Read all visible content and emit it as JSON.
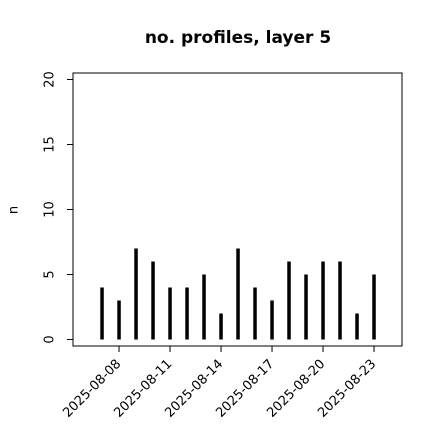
{
  "chart_data": {
    "type": "bar",
    "title": "no. profiles, layer 5",
    "ylabel": "n",
    "x": [
      "2025-08-07",
      "2025-08-08",
      "2025-08-09",
      "2025-08-10",
      "2025-08-11",
      "2025-08-12",
      "2025-08-13",
      "2025-08-14",
      "2025-08-15",
      "2025-08-16",
      "2025-08-17",
      "2025-08-18",
      "2025-08-19",
      "2025-08-20",
      "2025-08-21",
      "2025-08-22",
      "2025-08-23"
    ],
    "values": [
      4,
      3,
      7,
      6,
      4,
      4,
      5,
      2,
      7,
      4,
      3,
      6,
      5,
      6,
      6,
      2,
      5
    ],
    "color": "#000000",
    "xlim": [
      "2025-08-05T07:00",
      "2025-08-24T15:30"
    ],
    "xticks": [
      "2025-08-08",
      "2025-08-11",
      "2025-08-14",
      "2025-08-17",
      "2025-08-20",
      "2025-08-23"
    ],
    "xtick_colors": [
      "#000000",
      "#000000",
      "#228b22",
      "#000000",
      "#000000",
      "#000000"
    ],
    "ylim": [
      -0.5,
      20.5
    ],
    "yticks": [
      0,
      5,
      10,
      15,
      20
    ]
  }
}
